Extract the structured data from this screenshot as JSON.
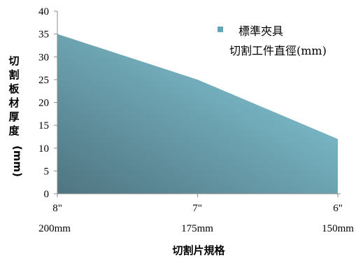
{
  "chart_data": {
    "type": "area",
    "categories": [
      {
        "size": "8\"",
        "diameter": "200mm"
      },
      {
        "size": "7\"",
        "diameter": "175mm"
      },
      {
        "size": "6\"",
        "diameter": "150mm"
      }
    ],
    "series": [
      {
        "name": "標準夾具",
        "values": [
          35,
          25,
          12
        ]
      }
    ],
    "legend_subtitle": "切割工件直徑(mm)",
    "xlabel": "切割片規格",
    "ylabel": "切割板材厚度(mm)",
    "ylim": [
      0,
      40
    ],
    "yticks": [
      0,
      5,
      10,
      15,
      20,
      25,
      30,
      35,
      40
    ],
    "legend_position": "top-right",
    "grid": false,
    "colors": {
      "fill_dark": "#4f7480",
      "fill_light": "#8ad2e2",
      "legend_marker": "#5fa6ba"
    }
  }
}
